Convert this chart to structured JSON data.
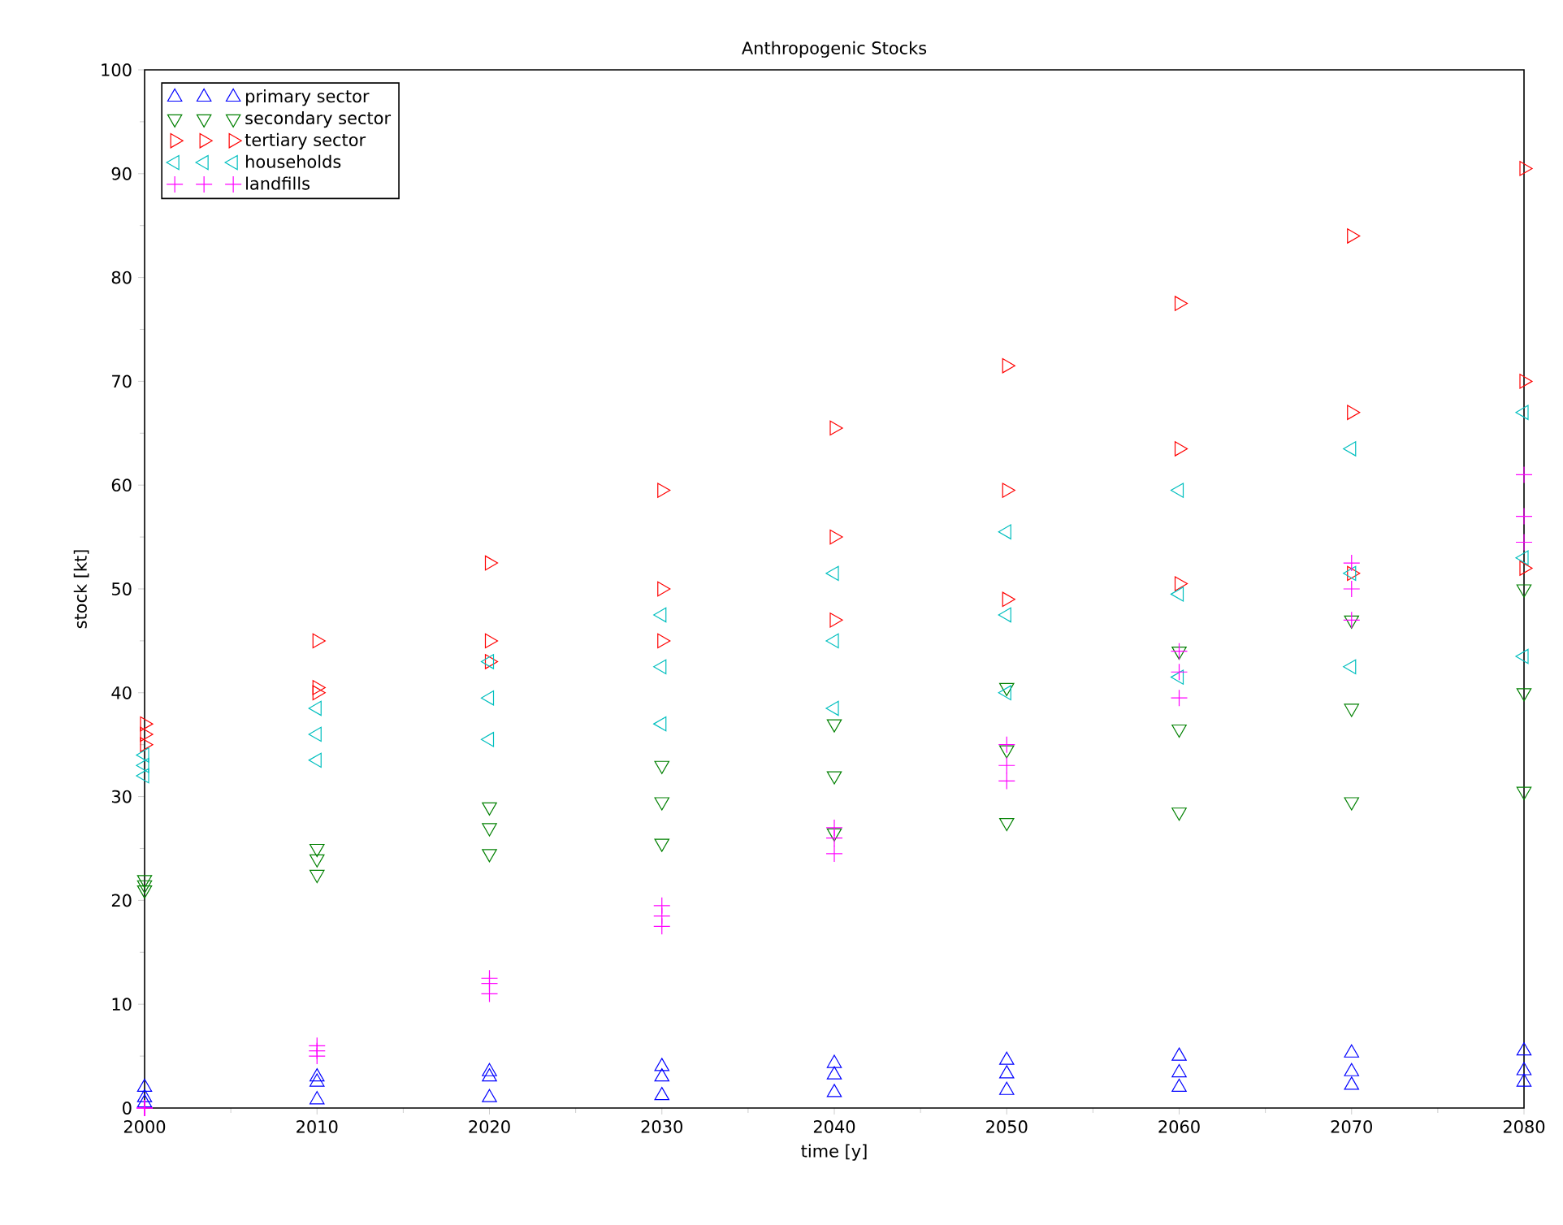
{
  "chart_data": {
    "type": "scatter",
    "title": "Anthropogenic Stocks",
    "xlabel": "time [y]",
    "ylabel": "stock [kt]",
    "x": [
      2000,
      2010,
      2020,
      2030,
      2040,
      2050,
      2060,
      2070,
      2080
    ],
    "xlim": [
      2000,
      2080
    ],
    "ylim": [
      0,
      100
    ],
    "xticks": [
      2000,
      2010,
      2020,
      2030,
      2040,
      2050,
      2060,
      2070,
      2080
    ],
    "yticks": [
      0,
      10,
      20,
      30,
      40,
      50,
      60,
      70,
      80,
      90,
      100
    ],
    "legend": "top left",
    "grid": false,
    "series": [
      {
        "name": "primary sector",
        "color": "#0000ff",
        "marker": "triangle",
        "values": [
          2,
          3,
          3.5,
          4,
          4.3,
          4.6,
          5,
          5.3,
          5.5
        ]
      },
      {
        "color": "#0000ff",
        "marker": "triangle",
        "values": [
          1,
          2.5,
          3,
          3,
          3.2,
          3.3,
          3.4,
          3.5,
          3.6
        ]
      },
      {
        "color": "#0000ff",
        "marker": "triangle",
        "values": [
          0.5,
          0.8,
          1,
          1.2,
          1.5,
          1.7,
          2,
          2.2,
          2.5
        ]
      },
      {
        "name": "secondary sector",
        "color": "#008000",
        "marker": "triangle",
        "values": [
          22,
          25,
          29,
          33,
          37,
          40.5,
          44,
          47,
          50
        ]
      },
      {
        "color": "#008000",
        "marker": "triangle",
        "values": [
          21.5,
          24,
          27,
          29.5,
          32,
          34.5,
          36.5,
          38.5,
          40
        ]
      },
      {
        "color": "#008000",
        "marker": "triangle",
        "values": [
          21,
          22.5,
          24.5,
          25.5,
          26.5,
          27.5,
          28.5,
          29.5,
          30.5
        ]
      },
      {
        "name": "tertiary sector",
        "color": "#ff0000",
        "marker": "triangle",
        "values": [
          37,
          45,
          52.5,
          59.5,
          65.5,
          71.5,
          77.5,
          84,
          90.5
        ]
      },
      {
        "color": "#ff0000",
        "marker": "triangle",
        "values": [
          36,
          40.5,
          45,
          50,
          55,
          59.5,
          63.5,
          67,
          70
        ]
      },
      {
        "color": "#ff0000",
        "marker": "triangle",
        "values": [
          35,
          40,
          43,
          45,
          47,
          49,
          50.5,
          51.5,
          52
        ]
      },
      {
        "name": "households",
        "color": "#00bfbf",
        "marker": "triangle",
        "values": [
          34,
          38.5,
          43,
          47.5,
          51.5,
          55.5,
          59.5,
          63.5,
          67
        ]
      },
      {
        "color": "#00bfbf",
        "marker": "triangle",
        "values": [
          33,
          36,
          39.5,
          42.5,
          45,
          47.5,
          49.5,
          51.5,
          53
        ]
      },
      {
        "color": "#00bfbf",
        "marker": "triangle",
        "values": [
          32,
          33.5,
          35.5,
          37,
          38.5,
          40,
          41.5,
          42.5,
          43.5
        ]
      },
      {
        "name": "landfills",
        "color": "#ff00ff",
        "marker": "cross",
        "values": [
          0,
          6,
          12.5,
          19.5,
          27,
          35,
          44,
          52.5,
          61
        ]
      },
      {
        "color": "#ff00ff",
        "marker": "cross",
        "values": [
          0,
          5.5,
          12,
          18.5,
          26,
          33,
          42,
          50,
          57
        ]
      },
      {
        "color": "#ff00ff",
        "marker": "cross",
        "values": [
          0,
          5,
          11,
          17.5,
          24.5,
          31.5,
          39.5,
          47,
          54.5
        ]
      }
    ]
  }
}
